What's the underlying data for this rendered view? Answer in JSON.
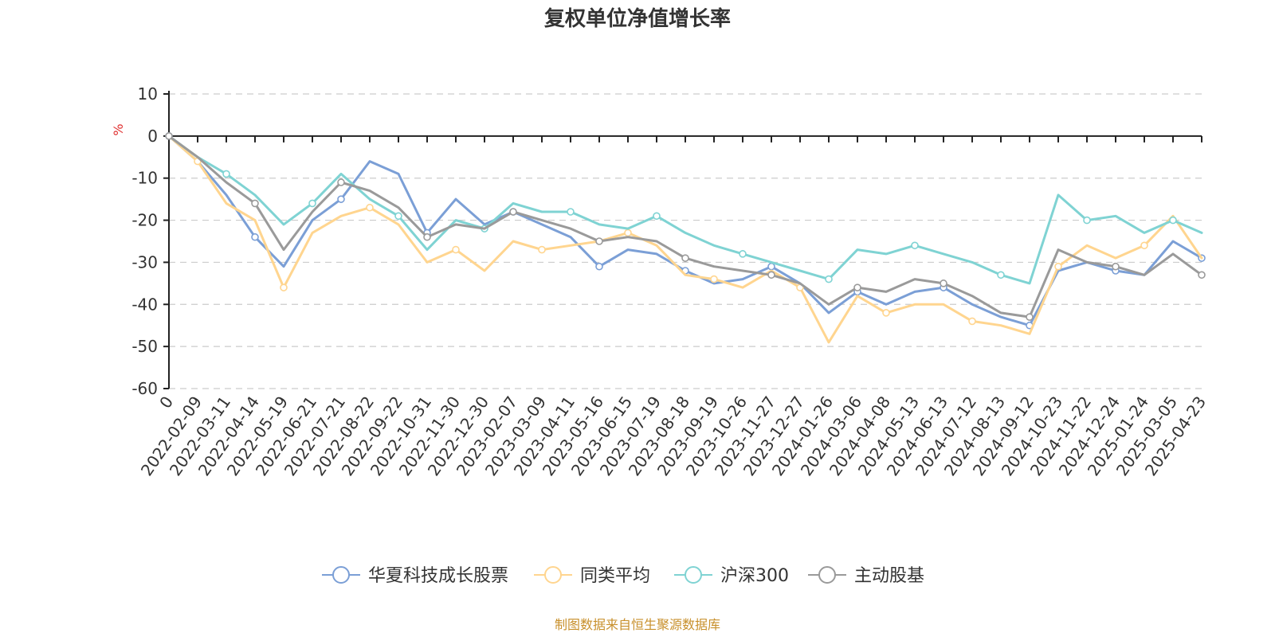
{
  "chart_data": {
    "type": "line",
    "title": "复权单位净值增长率",
    "ylabel": "%",
    "source": "制图数据来自恒生聚源数据库",
    "ylim": [
      -60,
      10
    ],
    "yticks": [
      10,
      0,
      -10,
      -20,
      -30,
      -40,
      -50,
      -60
    ],
    "grid": true,
    "legend_position": "bottom",
    "x": [
      "0",
      "2022-02-09",
      "2022-03-11",
      "2022-04-14",
      "2022-05-19",
      "2022-06-21",
      "2022-07-21",
      "2022-08-22",
      "2022-09-22",
      "2022-10-31",
      "2022-11-30",
      "2022-12-30",
      "2023-02-07",
      "2023-03-09",
      "2023-04-11",
      "2023-05-16",
      "2023-06-15",
      "2023-07-19",
      "2023-08-18",
      "2023-09-19",
      "2023-10-26",
      "2023-11-27",
      "2023-12-27",
      "2024-01-26",
      "2024-03-06",
      "2024-04-08",
      "2024-05-13",
      "2024-06-13",
      "2024-07-12",
      "2024-08-13",
      "2024-09-12",
      "2024-10-23",
      "2024-11-22",
      "2024-12-24",
      "2025-01-24",
      "2025-03-05",
      "2025-04-23"
    ],
    "series": [
      {
        "name": "华夏科技成长股票",
        "color": "#7b9fd6",
        "values": [
          0,
          -6,
          -14,
          -24,
          -31,
          -20,
          -15,
          -6,
          -9,
          -23,
          -15,
          -21,
          -18,
          -21,
          -24,
          -31,
          -27,
          -28,
          -32,
          -35,
          -34,
          -31,
          -35,
          -42,
          -37,
          -40,
          -37,
          -36,
          -40,
          -43,
          -45,
          -32,
          -30,
          -32,
          -33,
          -25,
          -29
        ]
      },
      {
        "name": "同类平均",
        "color": "#ffd58f",
        "values": [
          0,
          -6,
          -16,
          -20,
          -36,
          -23,
          -19,
          -17,
          -21,
          -30,
          -27,
          -32,
          -25,
          -27,
          -26,
          -25,
          -23,
          -26,
          -33,
          -34,
          -36,
          -32,
          -36,
          -49,
          -38,
          -42,
          -40,
          -40,
          -44,
          -45,
          -47,
          -31,
          -26,
          -29,
          -26,
          -19,
          -29
        ]
      },
      {
        "name": "沪深300",
        "color": "#7fd3d3",
        "values": [
          0,
          -5,
          -9,
          -14,
          -21,
          -16,
          -9,
          -15,
          -19,
          -27,
          -20,
          -22,
          -16,
          -18,
          -18,
          -21,
          -22,
          -19,
          -23,
          -26,
          -28,
          -30,
          -32,
          -34,
          -27,
          -28,
          -26,
          -28,
          -30,
          -33,
          -35,
          -14,
          -20,
          -19,
          -23,
          -20,
          -23
        ]
      },
      {
        "name": "主动股基",
        "color": "#9a9a9a",
        "values": [
          0,
          -5,
          -11,
          -16,
          -27,
          -18,
          -11,
          -13,
          -17,
          -24,
          -21,
          -22,
          -18,
          -20,
          -22,
          -25,
          -24,
          -25,
          -29,
          -31,
          -32,
          -33,
          -35,
          -40,
          -36,
          -37,
          -34,
          -35,
          -38,
          -42,
          -43,
          -27,
          -30,
          -31,
          -33,
          -28,
          -33
        ]
      }
    ]
  }
}
